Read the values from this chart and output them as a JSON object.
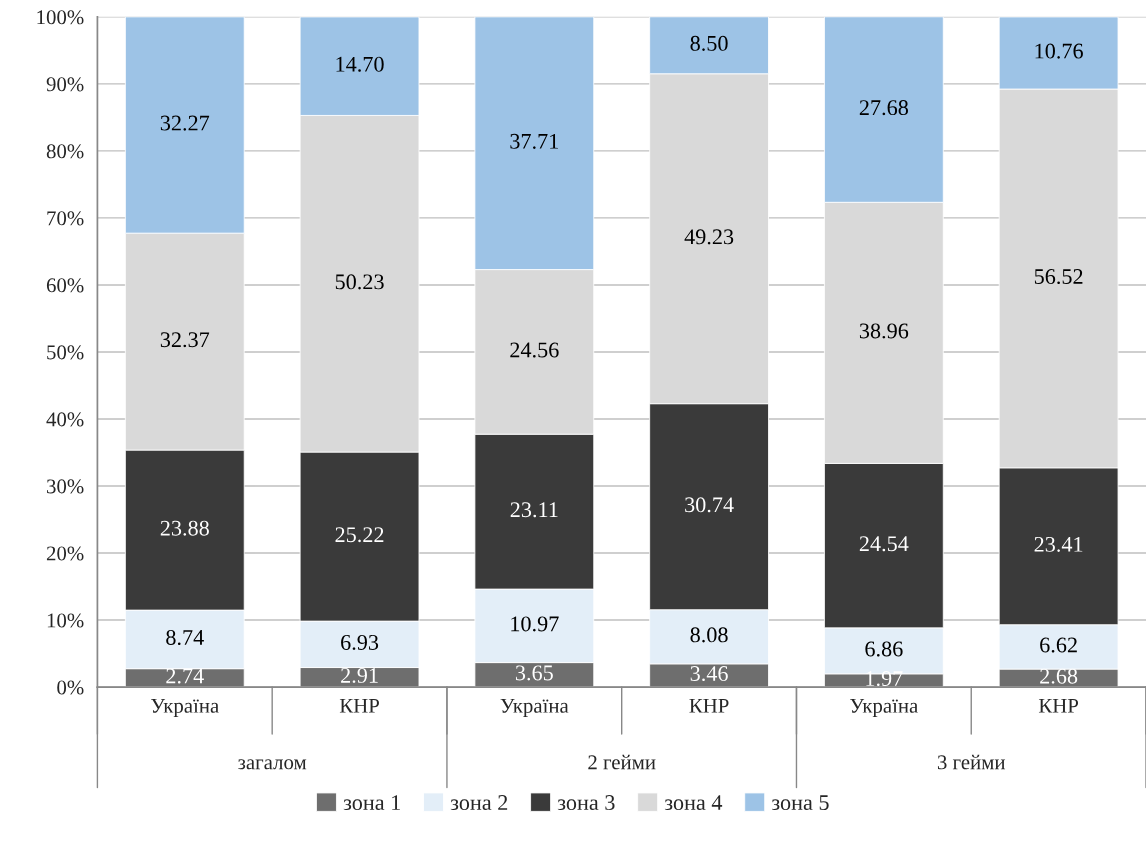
{
  "chart_data": {
    "type": "bar",
    "stacked": true,
    "categories": [
      "Україна",
      "КНР",
      "Україна",
      "КНР",
      "Україна",
      "КНР"
    ],
    "series": [
      {
        "name": "зона 1",
        "color": "#6e6e6e",
        "values": [
          2.74,
          2.91,
          3.65,
          3.46,
          1.97,
          2.68
        ],
        "value_labels": [
          "2.74",
          "2.91",
          "3.65",
          "3.46",
          "1.97",
          "2.68"
        ]
      },
      {
        "name": "зона 2",
        "color": "#e3eef8",
        "values": [
          8.74,
          6.93,
          10.97,
          8.08,
          6.86,
          6.62
        ],
        "value_labels": [
          "8.74",
          "6.93",
          "10.97",
          "8.08",
          "6.86",
          "6.62"
        ]
      },
      {
        "name": "зона 3",
        "color": "#3a3a3a",
        "values": [
          23.88,
          25.22,
          23.11,
          30.74,
          24.54,
          23.41
        ],
        "value_labels": [
          "23.88",
          "25.22",
          "23.11",
          "30.74",
          "24.54",
          "23.41"
        ]
      },
      {
        "name": "зона 4",
        "color": "#d9d9d9",
        "values": [
          32.37,
          50.23,
          24.56,
          49.23,
          38.96,
          56.52
        ],
        "value_labels": [
          "32.37",
          "50.23",
          "24.56",
          "49.23",
          "38.96",
          "56.52"
        ]
      },
      {
        "name": "зона 5",
        "color": "#9dc3e6",
        "values": [
          32.27,
          14.7,
          37.71,
          8.5,
          27.68,
          10.76
        ],
        "value_labels": [
          "32.27",
          "14.70",
          "37.71",
          "8.50",
          "27.68",
          "10.76"
        ]
      }
    ],
    "ylim": [
      0,
      100
    ],
    "yticks": [
      {
        "value": 0,
        "label": "0%"
      },
      {
        "value": 10,
        "label": "10%"
      },
      {
        "value": 20,
        "label": "20%"
      },
      {
        "value": 30,
        "label": "30%"
      },
      {
        "value": 40,
        "label": "40%"
      },
      {
        "value": 50,
        "label": "50%"
      },
      {
        "value": 60,
        "label": "60%"
      },
      {
        "value": 70,
        "label": "70%"
      },
      {
        "value": 80,
        "label": "80%"
      },
      {
        "value": 90,
        "label": "90%"
      },
      {
        "value": 100,
        "label": "100%"
      }
    ],
    "grid": "y",
    "legend": "bottom",
    "annotations": [
      "загалом",
      "2 гейми",
      "3 гейми"
    ]
  }
}
